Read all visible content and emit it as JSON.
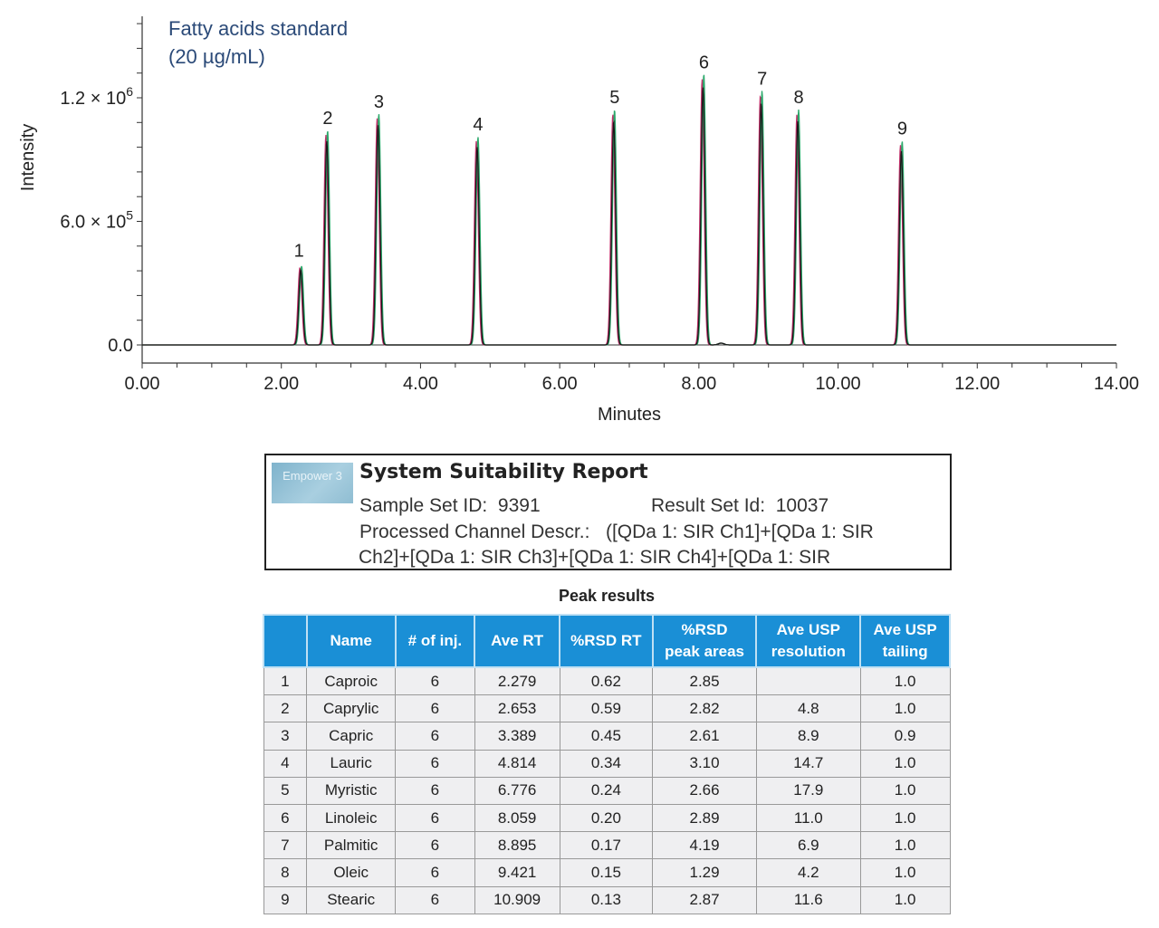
{
  "chart_data": {
    "type": "line",
    "annotation": [
      "Fatty acids standard",
      "(20 µg/mL)"
    ],
    "xlabel": "Minutes",
    "ylabel": "Intensity",
    "xlim": [
      0,
      14
    ],
    "ylim": [
      0,
      1600000
    ],
    "x_ticks": [
      "0.00",
      "2.00",
      "4.00",
      "6.00",
      "8.00",
      "10.00",
      "12.00",
      "14.00"
    ],
    "y_ticks": [
      {
        "value": 0,
        "label": "0.0"
      },
      {
        "value": 600000,
        "label": "6.0 × 10",
        "exp": "5"
      },
      {
        "value": 1200000,
        "label": "1.2 × 10",
        "exp": "6"
      }
    ],
    "grid": false,
    "series_colors": [
      "#c0306a",
      "#2aa86a",
      "#1a1a1a"
    ],
    "peaks": [
      {
        "label": "1",
        "rt": 2.279,
        "height": 375000
      },
      {
        "label": "2",
        "rt": 2.653,
        "height": 1020000
      },
      {
        "label": "3",
        "rt": 3.389,
        "height": 1100000
      },
      {
        "label": "4",
        "rt": 4.814,
        "height": 990000
      },
      {
        "label": "5",
        "rt": 6.776,
        "height": 1120000
      },
      {
        "label": "6",
        "rt": 8.059,
        "height": 1290000
      },
      {
        "label": "7",
        "rt": 8.895,
        "height": 1210000
      },
      {
        "label": "8",
        "rt": 9.421,
        "height": 1120000
      },
      {
        "label": "9",
        "rt": 10.909,
        "height": 970000
      }
    ]
  },
  "report": {
    "logo_text": "Empower 3",
    "title": "System Suitability Report",
    "sample_set_label": "Sample Set ID:",
    "sample_set_id": "9391",
    "result_set_label": "Result Set Id:",
    "result_set_id": "10037",
    "channel_line1": "Processed Channel Descr.:   ([QDa 1: SIR Ch1]+[QDa 1: SIR",
    "channel_line2": "Ch2]+[QDa 1: SIR Ch3]+[QDa 1: SIR Ch4]+[QDa 1: SIR"
  },
  "table": {
    "title": "Peak results",
    "headers": [
      "",
      "Name",
      "# of inj.",
      "Ave RT",
      "%RSD RT",
      "%RSD\npeak areas",
      "Ave USP\nresolution",
      "Ave USP\ntailing"
    ],
    "rows": [
      [
        "1",
        "Caproic",
        "6",
        "2.279",
        "0.62",
        "2.85",
        "",
        "1.0"
      ],
      [
        "2",
        "Caprylic",
        "6",
        "2.653",
        "0.59",
        "2.82",
        "4.8",
        "1.0"
      ],
      [
        "3",
        "Capric",
        "6",
        "3.389",
        "0.45",
        "2.61",
        "8.9",
        "0.9"
      ],
      [
        "4",
        "Lauric",
        "6",
        "4.814",
        "0.34",
        "3.10",
        "14.7",
        "1.0"
      ],
      [
        "5",
        "Myristic",
        "6",
        "6.776",
        "0.24",
        "2.66",
        "17.9",
        "1.0"
      ],
      [
        "6",
        "Linoleic",
        "6",
        "8.059",
        "0.20",
        "2.89",
        "11.0",
        "1.0"
      ],
      [
        "7",
        "Palmitic",
        "6",
        "8.895",
        "0.17",
        "4.19",
        "6.9",
        "1.0"
      ],
      [
        "8",
        "Oleic",
        "6",
        "9.421",
        "0.15",
        "1.29",
        "4.2",
        "1.0"
      ],
      [
        "9",
        "Stearic",
        "6",
        "10.909",
        "0.13",
        "2.87",
        "11.6",
        "1.0"
      ]
    ]
  }
}
